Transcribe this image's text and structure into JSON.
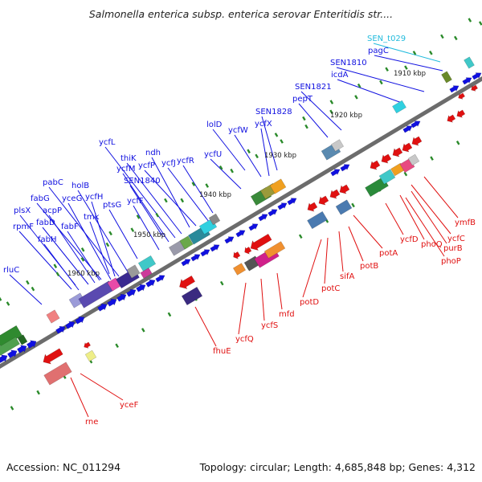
{
  "title": "Salmonella enterica subsp. enterica serovar Enteritidis str....",
  "footer": {
    "accession": "Accession: NC_011294",
    "summary": "Topology: circular; Length: 4,685,848 bp; Genes: 4,312"
  },
  "colors": {
    "forward": "#1010e0",
    "reverse": "#e01010",
    "rna": "#22bbdd",
    "backbone": "#7a7a7a",
    "tick": "#2a8a2a"
  },
  "kbp_labels": [
    "1910 kbp",
    "1920 kbp",
    "1930 kbp",
    "1940 kbp",
    "1950 kbp",
    "1960 kbp"
  ],
  "forward_genes": [
    "SEN_t029",
    "pagC",
    "SEN1810",
    "icdA",
    "SEN1821",
    "pepT",
    "SEN1828",
    "ycfX",
    "lolD",
    "ycfW",
    "ycfU",
    "ycfL",
    "thiK",
    "ndh",
    "ycfM",
    "ycfP",
    "ycfJ",
    "ycfR",
    "SEN1840",
    "pabC",
    "holB",
    "yceG",
    "ycfH",
    "fabG",
    "acpP",
    "ptsG",
    "ycfF",
    "plsX",
    "fabD",
    "tmk",
    "rpmF",
    "fabF",
    "fabH",
    "rluC"
  ],
  "reverse_genes": [
    "ymfB",
    "ycfC",
    "ycfD",
    "purB",
    "phoQ",
    "phoP",
    "potA",
    "sifA",
    "potB",
    "potC",
    "potD",
    "mfd",
    "ycfS",
    "ycfQ",
    "fhuE",
    "yceF",
    "rne"
  ]
}
